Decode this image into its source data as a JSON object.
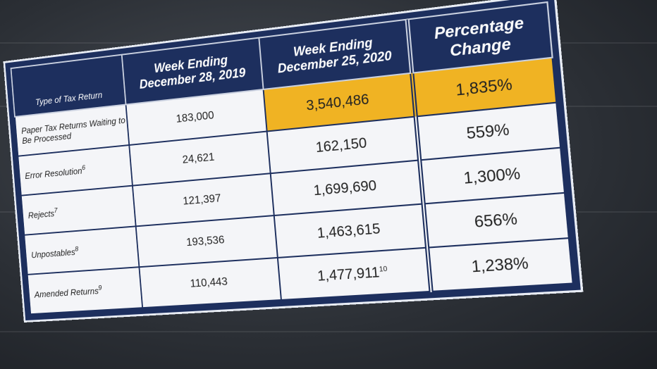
{
  "table": {
    "header": [
      "Type of Tax Return",
      "Week Ending December 28, 2019",
      "Week Ending December 25, 2020",
      "Percentage Change"
    ],
    "rows": [
      {
        "label": "Paper Tax Returns Waiting to Be Processed",
        "week_2019": "183,000",
        "week_2020": "3,540,486",
        "change": "1,835%"
      },
      {
        "label": "Error Resolution",
        "note": "6",
        "week_2019": "24,621",
        "week_2020": "162,150",
        "change": "559%"
      },
      {
        "label": "Rejects",
        "note": "7",
        "week_2019": "121,397",
        "week_2020": "1,699,690",
        "change": "1,300%"
      },
      {
        "label": "Unpostables",
        "note": "8",
        "week_2019": "193,536",
        "week_2020": "1,463,615",
        "change": "656%"
      },
      {
        "label": "Amended Returns",
        "note": "9",
        "week_2019": "110,443",
        "week_2020": "1,477,911",
        "week_2020_note": "10",
        "change": "1,238%"
      }
    ]
  }
}
